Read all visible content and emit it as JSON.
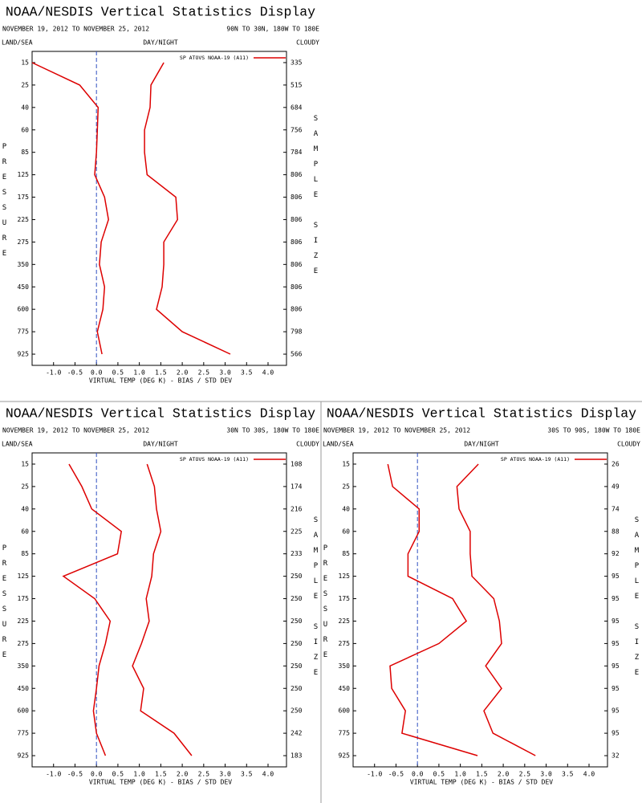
{
  "chart_data": [
    {
      "type": "line",
      "orientation": "horizontal",
      "title": "NOAA/NESDIS Vertical Statistics Display",
      "subtitle": "NOVEMBER 19, 2012 TO NOVEMBER 25, 2012",
      "region": "90N TO 30N, 180W TO 180E",
      "header_labels": [
        "LAND/SEA",
        "DAY/NIGHT",
        "CLOUDY"
      ],
      "ylabel": "PRESSURE",
      "y2label": "SAMPLE SIZE",
      "xlabel": "VIRTUAL TEMP (DEG K) - BIAS / STD DEV",
      "categories": [
        "15",
        "25",
        "40",
        "60",
        "85",
        "125",
        "175",
        "225",
        "275",
        "350",
        "450",
        "600",
        "775",
        "925"
      ],
      "sample_size": [
        335,
        515,
        684,
        756,
        784,
        806,
        806,
        806,
        806,
        806,
        806,
        806,
        798,
        566
      ],
      "series": [
        {
          "name": "SP ATOVS NOAA-19 (A11)",
          "color": "#dd0000",
          "values": [
            -1.5,
            -0.39,
            0.04,
            0.02,
            0.0,
            -0.04,
            0.19,
            0.28,
            0.11,
            0.07,
            0.19,
            0.15,
            0.02,
            0.13
          ]
        },
        {
          "color": "#dd0000",
          "values": [
            1.57,
            1.27,
            1.25,
            1.12,
            1.12,
            1.18,
            1.85,
            1.89,
            1.57,
            1.57,
            1.53,
            1.4,
            2.0,
            3.12
          ]
        }
      ],
      "zero_line": 0,
      "zero_line_color": "#3050c0",
      "xlim": [
        -1.5,
        4.43
      ],
      "xticks": [
        {
          "value": -1,
          "label": "-1.0"
        },
        -0.5,
        {
          "value": 0,
          "label": "0.0"
        },
        0.5,
        {
          "value": 1,
          "label": "1.0"
        },
        1.5,
        {
          "value": 2,
          "label": "2.0"
        },
        2.5,
        {
          "value": 3,
          "label": "3.0"
        },
        3.5,
        {
          "value": 4,
          "label": "4.0"
        }
      ]
    },
    {
      "type": "line",
      "orientation": "horizontal",
      "title": "NOAA/NESDIS Vertical Statistics Display",
      "subtitle": "NOVEMBER 19, 2012 TO NOVEMBER 25, 2012",
      "region": "30N TO 30S, 180W TO 180E",
      "header_labels": [
        "LAND/SEA",
        "DAY/NIGHT",
        "CLOUDY"
      ],
      "ylabel": "PRESSURE",
      "y2label": "SAMPLE SIZE",
      "xlabel": "VIRTUAL TEMP (DEG K) - BIAS / STD DEV",
      "categories": [
        "15",
        "25",
        "40",
        "60",
        "85",
        "125",
        "175",
        "225",
        "275",
        "350",
        "450",
        "600",
        "775",
        "925"
      ],
      "sample_size": [
        108,
        174,
        216,
        225,
        233,
        250,
        250,
        250,
        250,
        250,
        250,
        250,
        242,
        183
      ],
      "series": [
        {
          "name": "SP ATOVS NOAA-19 (A11)",
          "color": "#dd0000",
          "values": [
            -0.64,
            -0.34,
            -0.11,
            0.58,
            0.49,
            -0.77,
            -0.04,
            0.32,
            0.21,
            0.06,
            0.0,
            -0.07,
            0.0,
            0.21
          ]
        },
        {
          "color": "#dd0000",
          "values": [
            1.18,
            1.35,
            1.4,
            1.5,
            1.33,
            1.29,
            1.16,
            1.23,
            1.05,
            0.84,
            1.1,
            1.03,
            1.81,
            2.22
          ]
        }
      ],
      "zero_line": 0,
      "zero_line_color": "#3050c0",
      "xlim": [
        -1.5,
        4.43
      ],
      "xticks": [
        {
          "value": -1,
          "label": "-1.0"
        },
        -0.5,
        {
          "value": 0,
          "label": "0.0"
        },
        0.5,
        {
          "value": 1,
          "label": "1.0"
        },
        1.5,
        {
          "value": 2,
          "label": "2.0"
        },
        2.5,
        {
          "value": 3,
          "label": "3.0"
        },
        3.5,
        {
          "value": 4,
          "label": "4.0"
        }
      ]
    },
    {
      "type": "line",
      "orientation": "horizontal",
      "title": "NOAA/NESDIS Vertical Statistics Display",
      "subtitle": "NOVEMBER 19, 2012 TO NOVEMBER 25, 2012",
      "region": "30S TO 90S, 180W TO 180E",
      "header_labels": [
        "LAND/SEA",
        "DAY/NIGHT",
        "CLOUDY"
      ],
      "ylabel": "PRESSURE",
      "y2label": "SAMPLE SIZE",
      "xlabel": "VIRTUAL TEMP (DEG K) - BIAS / STD DEV",
      "categories": [
        "15",
        "25",
        "40",
        "60",
        "85",
        "125",
        "175",
        "225",
        "275",
        "350",
        "450",
        "600",
        "775",
        "925"
      ],
      "sample_size": [
        26,
        49,
        74,
        88,
        92,
        95,
        95,
        95,
        95,
        95,
        95,
        95,
        95,
        32
      ],
      "series": [
        {
          "name": "SP ATOVS NOAA-19 (A11)",
          "color": "#dd0000",
          "values": [
            -0.69,
            -0.58,
            0.04,
            0.04,
            -0.22,
            -0.22,
            0.82,
            1.14,
            0.5,
            -0.64,
            -0.6,
            -0.28,
            -0.36,
            1.4
          ]
        },
        {
          "color": "#dd0000",
          "values": [
            1.42,
            0.92,
            0.97,
            1.23,
            1.23,
            1.27,
            1.78,
            1.91,
            1.96,
            1.59,
            1.96,
            1.55,
            1.76,
            2.75
          ]
        }
      ],
      "zero_line": 0,
      "zero_line_color": "#3050c0",
      "xlim": [
        -1.5,
        4.43
      ],
      "xticks": [
        {
          "value": -1,
          "label": "-1.0"
        },
        -0.5,
        {
          "value": 0,
          "label": "0.0"
        },
        0.5,
        {
          "value": 1,
          "label": "1.0"
        },
        1.5,
        {
          "value": 2,
          "label": "2.0"
        },
        2.5,
        {
          "value": 3,
          "label": "3.0"
        },
        3.5,
        {
          "value": 4,
          "label": "4.0"
        }
      ]
    }
  ]
}
